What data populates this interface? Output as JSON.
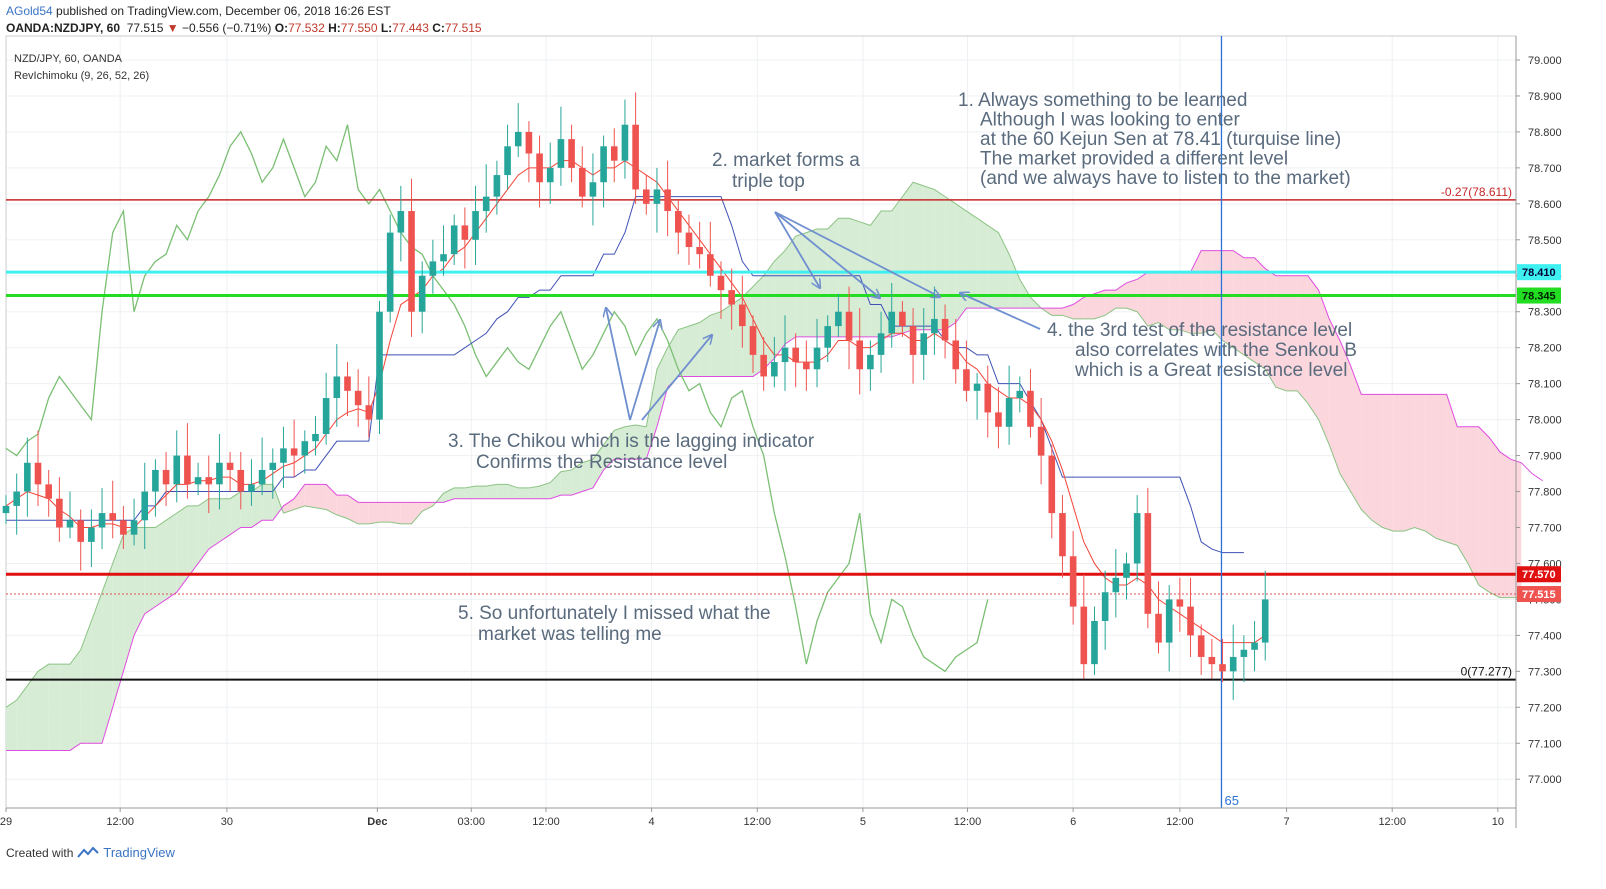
{
  "header": {
    "user": "AGold54",
    "published": " published on TradingView.com, December 06, 2018 16:26 EST",
    "symbol": "OANDA:NZDJPY, 60",
    "last": "77.515",
    "change": "−0.556 (−0.71%)",
    "ohlc": {
      "o_label": "O:",
      "o": "77.532",
      "h_label": "H:",
      "h": "77.550",
      "l_label": "L:",
      "l": "77.443",
      "c_label": "C:",
      "c": "77.515"
    }
  },
  "legend": {
    "title": "NZD/JPY, 60, OANDA",
    "indicator": "RevIchimoku (9, 26, 52, 26)"
  },
  "footer": {
    "created": "Created with",
    "brand": "TradingView"
  },
  "colors": {
    "up": "#26a69a",
    "down": "#ef5350",
    "tenkan": "#f44336",
    "kijun": "#3f51b5",
    "chikou": "#7bbf73",
    "spanA": "#8bc383",
    "spanB": "#e04ce0",
    "cloud_bull": "#d7ecd5",
    "cloud_bear": "#fbd6dd",
    "line_cyan": "#3ef0f0",
    "line_green": "#22dd22",
    "line_red": "#e01010",
    "line_darkred": "#c62828",
    "line_black": "#111111",
    "vline": "#2a72d6"
  },
  "chart_data": {
    "type": "candlestick",
    "symbol": "NZD/JPY",
    "timeframe": "60",
    "ylim": [
      76.92,
      79.05
    ],
    "xlim": [
      0,
      141.5
    ],
    "y_ticks": [
      "77.000",
      "77.100",
      "77.200",
      "77.300",
      "77.400",
      "77.500",
      "77.600",
      "77.700",
      "77.800",
      "77.900",
      "78.000",
      "78.100",
      "78.200",
      "78.300",
      "78.400",
      "78.500",
      "78.600",
      "78.700",
      "78.800",
      "78.900",
      "79.000"
    ],
    "x_ticks": [
      {
        "label": "29",
        "t": 0
      },
      {
        "label": "12:00",
        "t": 10.7
      },
      {
        "label": "30",
        "t": 20.7
      },
      {
        "label": "Dec",
        "t": 34.8
      },
      {
        "label": "03:00",
        "t": 43.6
      },
      {
        "label": "12:00",
        "t": 50.6
      },
      {
        "label": "4",
        "t": 60.5
      },
      {
        "label": "12:00",
        "t": 70.4
      },
      {
        "label": "5",
        "t": 80.3
      },
      {
        "label": "12:00",
        "t": 90.1
      },
      {
        "label": "6",
        "t": 100
      },
      {
        "label": "12:00",
        "t": 110
      },
      {
        "label": "7",
        "t": 120
      },
      {
        "label": "12:00",
        "t": 129.9
      },
      {
        "label": "10",
        "t": 139.8
      }
    ],
    "price_lines": [
      {
        "name": "kijun-target",
        "value": 78.41,
        "label": "78.410",
        "color": "#3ef0f0"
      },
      {
        "name": "resistance",
        "value": 78.345,
        "label": "78.345",
        "color": "#22dd22"
      },
      {
        "name": "support",
        "value": 77.57,
        "label": "77.570",
        "color": "#e01010"
      },
      {
        "name": "fib-top",
        "value": 78.611,
        "label": "-0.27(78.611)",
        "color": "#c62828"
      },
      {
        "name": "fib-zero",
        "value": 77.277,
        "label": "0(77.277)",
        "color": "#111111"
      }
    ],
    "last_price": {
      "value": 77.515,
      "label": "77.515"
    },
    "vertical_marker": {
      "t": 113.9,
      "label": "65"
    },
    "closes": [
      77.76,
      77.8,
      77.88,
      77.82,
      77.78,
      77.7,
      77.72,
      77.66,
      77.7,
      77.74,
      77.72,
      77.68,
      77.72,
      77.8,
      77.86,
      77.82,
      77.9,
      77.82,
      77.84,
      77.82,
      77.88,
      77.86,
      77.8,
      77.82,
      77.86,
      77.88,
      77.92,
      77.9,
      77.94,
      77.96,
      78.06,
      78.12,
      78.08,
      78.04,
      78.0,
      78.3,
      78.52,
      78.58,
      78.3,
      78.4,
      78.44,
      78.46,
      78.54,
      78.5,
      78.58,
      78.62,
      78.68,
      78.76,
      78.8,
      78.74,
      78.66,
      78.7,
      78.78,
      78.7,
      78.62,
      78.66,
      78.76,
      78.72,
      78.82,
      78.64,
      78.6,
      78.64,
      78.58,
      78.52,
      78.48,
      78.46,
      78.4,
      78.36,
      78.32,
      78.26,
      78.18,
      78.12,
      78.16,
      78.2,
      78.16,
      78.14,
      78.2,
      78.26,
      78.3,
      78.22,
      78.14,
      78.18,
      78.24,
      78.3,
      78.26,
      78.18,
      78.24,
      78.28,
      78.22,
      78.14,
      78.08,
      78.1,
      78.02,
      77.98,
      78.06,
      78.08,
      77.98,
      77.9,
      77.74,
      77.62,
      77.48,
      77.32,
      77.44,
      77.52,
      77.56,
      77.6,
      77.74,
      77.46,
      77.38,
      77.5,
      77.48,
      77.4,
      77.34,
      77.32,
      77.3,
      77.34,
      77.36,
      77.38,
      77.5
    ],
    "tenkan": [
      77.76,
      77.78,
      77.8,
      77.79,
      77.78,
      77.75,
      77.73,
      77.7,
      77.7,
      77.71,
      77.71,
      77.7,
      77.7,
      77.73,
      77.76,
      77.79,
      77.82,
      77.82,
      77.83,
      77.83,
      77.84,
      77.84,
      77.82,
      77.82,
      77.83,
      77.85,
      77.87,
      77.88,
      77.9,
      77.92,
      77.96,
      78.0,
      78.02,
      78.03,
      78.02,
      78.1,
      78.22,
      78.32,
      78.34,
      78.36,
      78.4,
      78.42,
      78.46,
      78.48,
      78.52,
      78.56,
      78.6,
      78.64,
      78.68,
      78.7,
      78.7,
      78.7,
      78.72,
      78.72,
      78.7,
      78.68,
      78.7,
      78.7,
      78.72,
      78.7,
      78.68,
      78.66,
      78.62,
      78.58,
      78.54,
      78.5,
      78.46,
      78.42,
      78.38,
      78.34,
      78.28,
      78.22,
      78.18,
      78.18,
      78.16,
      78.16,
      78.16,
      78.18,
      78.22,
      78.22,
      78.2,
      78.2,
      78.22,
      78.24,
      78.24,
      78.22,
      78.22,
      78.24,
      78.22,
      78.2,
      78.16,
      78.14,
      78.1,
      78.08,
      78.06,
      78.06,
      78.04,
      78.0,
      77.94,
      77.86,
      77.76,
      77.66,
      77.6,
      77.56,
      77.54,
      77.54,
      77.56,
      77.54,
      77.5,
      77.48,
      77.46,
      77.44,
      77.42,
      77.4,
      77.38,
      77.38,
      77.38,
      77.38,
      77.4
    ],
    "kijun": [
      77.72,
      77.72,
      77.72,
      77.72,
      77.72,
      77.72,
      77.72,
      77.72,
      77.72,
      77.72,
      77.72,
      77.72,
      77.72,
      77.76,
      77.76,
      77.8,
      77.8,
      77.8,
      77.8,
      77.8,
      77.8,
      77.8,
      77.8,
      77.8,
      77.8,
      77.8,
      77.84,
      77.84,
      77.86,
      77.86,
      77.9,
      77.94,
      77.94,
      77.94,
      77.94,
      78.18,
      78.18,
      78.18,
      78.18,
      78.18,
      78.18,
      78.18,
      78.18,
      78.2,
      78.22,
      78.24,
      78.28,
      78.3,
      78.34,
      78.34,
      78.36,
      78.36,
      78.4,
      78.4,
      78.4,
      78.4,
      78.46,
      78.46,
      78.52,
      78.62,
      78.62,
      78.62,
      78.62,
      78.62,
      78.62,
      78.62,
      78.62,
      78.62,
      78.54,
      78.44,
      78.4,
      78.4,
      78.4,
      78.4,
      78.4,
      78.4,
      78.4,
      78.4,
      78.4,
      78.4,
      78.4,
      78.32,
      78.32,
      78.26,
      78.26,
      78.26,
      78.26,
      78.26,
      78.22,
      78.2,
      78.2,
      78.18,
      78.18,
      78.1,
      78.1,
      78.1,
      78.05,
      78.0,
      77.92,
      77.84,
      77.84,
      77.84,
      77.84,
      77.84,
      77.84,
      77.84,
      77.84,
      77.84,
      77.84,
      77.84,
      77.84,
      77.76,
      77.66,
      77.64,
      77.63,
      77.63,
      77.63
    ]
  },
  "annotations": {
    "note1": [
      "1. Always something to be learned",
      "Although I was looking to enter",
      "at the 60 Kejun Sen at 78.41 (turquise line)",
      "The market provided a different level",
      "(and we always have to  listen to the market)"
    ],
    "note2": [
      "2. market forms a",
      "triple top"
    ],
    "note3": [
      "3. The Chikou which is the lagging indicator",
      "Confirms the Resistance level"
    ],
    "note4": [
      "4. the 3rd test of the resistance level",
      "also correlates with the Senkou B",
      "which is a Great resistance level"
    ],
    "note5": [
      "5. So unfortunately I missed what the",
      "market was telling me"
    ]
  }
}
